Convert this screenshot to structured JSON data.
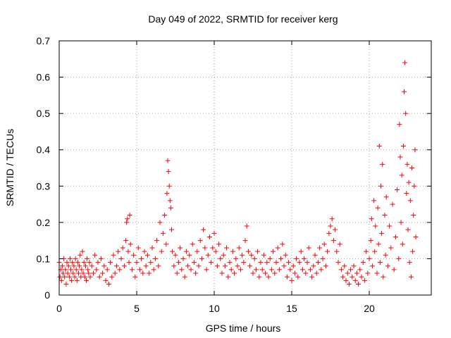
{
  "chart_data": {
    "type": "scatter",
    "title": "Day 049 of 2022, SRMTID for receiver kerg",
    "xlabel": "GPS time / hours",
    "ylabel": "SRMTID / TECUs",
    "xlim": [
      0,
      24
    ],
    "ylim": [
      0,
      0.7
    ],
    "grid": true,
    "marker": "+",
    "color": "#ff0000",
    "x_ticks": [
      0,
      5,
      10,
      15,
      20
    ],
    "x_tick_labels": [
      "0",
      "5",
      "10",
      "15",
      "20"
    ],
    "y_ticks": [
      0,
      0.1,
      0.2,
      0.3,
      0.4,
      0.5,
      0.6,
      0.7
    ],
    "y_tick_labels": [
      "0",
      "0.1",
      "0.2",
      "0.3",
      "0.4",
      "0.5",
      "0.6",
      "0.7"
    ],
    "series": [
      {
        "name": "SRMTID",
        "points": [
          [
            0.0,
            0.09
          ],
          [
            0.05,
            0.05
          ],
          [
            0.1,
            0.07
          ],
          [
            0.15,
            0.04
          ],
          [
            0.2,
            0.08
          ],
          [
            0.25,
            0.06
          ],
          [
            0.3,
            0.1
          ],
          [
            0.35,
            0.05
          ],
          [
            0.4,
            0.07
          ],
          [
            0.45,
            0.03
          ],
          [
            0.5,
            0.09
          ],
          [
            0.55,
            0.06
          ],
          [
            0.6,
            0.08
          ],
          [
            0.65,
            0.05
          ],
          [
            0.7,
            0.1
          ],
          [
            0.75,
            0.07
          ],
          [
            0.8,
            0.04
          ],
          [
            0.85,
            0.09
          ],
          [
            0.9,
            0.06
          ],
          [
            0.95,
            0.08
          ],
          [
            1.0,
            0.05
          ],
          [
            1.05,
            0.1
          ],
          [
            1.1,
            0.07
          ],
          [
            1.15,
            0.04
          ],
          [
            1.2,
            0.09
          ],
          [
            1.25,
            0.06
          ],
          [
            1.3,
            0.08
          ],
          [
            1.35,
            0.11
          ],
          [
            1.4,
            0.05
          ],
          [
            1.45,
            0.07
          ],
          [
            1.5,
            0.12
          ],
          [
            1.55,
            0.06
          ],
          [
            1.6,
            0.09
          ],
          [
            1.65,
            0.05
          ],
          [
            1.7,
            0.08
          ],
          [
            1.75,
            0.04
          ],
          [
            1.8,
            0.1
          ],
          [
            1.85,
            0.07
          ],
          [
            1.9,
            0.06
          ],
          [
            1.95,
            0.09
          ],
          [
            2.0,
            0.05
          ],
          [
            2.1,
            0.08
          ],
          [
            2.2,
            0.06
          ],
          [
            2.3,
            0.11
          ],
          [
            2.4,
            0.07
          ],
          [
            2.5,
            0.09
          ],
          [
            2.6,
            0.05
          ],
          [
            2.7,
            0.1
          ],
          [
            2.8,
            0.06
          ],
          [
            2.9,
            0.08
          ],
          [
            3.0,
            0.04
          ],
          [
            3.1,
            0.07
          ],
          [
            3.2,
            0.03
          ],
          [
            3.3,
            0.09
          ],
          [
            3.4,
            0.05
          ],
          [
            3.5,
            0.11
          ],
          [
            3.6,
            0.06
          ],
          [
            3.7,
            0.08
          ],
          [
            3.8,
            0.12
          ],
          [
            3.9,
            0.07
          ],
          [
            4.0,
            0.1
          ],
          [
            4.1,
            0.13
          ],
          [
            4.2,
            0.08
          ],
          [
            4.3,
            0.15
          ],
          [
            4.35,
            0.2
          ],
          [
            4.4,
            0.21
          ],
          [
            4.45,
            0.12
          ],
          [
            4.5,
            0.09
          ],
          [
            4.55,
            0.22
          ],
          [
            4.6,
            0.14
          ],
          [
            4.7,
            0.07
          ],
          [
            4.8,
            0.11
          ],
          [
            4.9,
            0.05
          ],
          [
            5.0,
            0.09
          ],
          [
            5.1,
            0.13
          ],
          [
            5.2,
            0.07
          ],
          [
            5.3,
            0.1
          ],
          [
            5.4,
            0.06
          ],
          [
            5.5,
            0.12
          ],
          [
            5.6,
            0.08
          ],
          [
            5.7,
            0.11
          ],
          [
            5.8,
            0.06
          ],
          [
            5.9,
            0.09
          ],
          [
            6.0,
            0.13
          ],
          [
            6.1,
            0.07
          ],
          [
            6.2,
            0.1
          ],
          [
            6.3,
            0.15
          ],
          [
            6.4,
            0.08
          ],
          [
            6.5,
            0.2
          ],
          [
            6.6,
            0.12
          ],
          [
            6.7,
            0.17
          ],
          [
            6.8,
            0.22
          ],
          [
            6.9,
            0.14
          ],
          [
            6.95,
            0.28
          ],
          [
            7.0,
            0.37
          ],
          [
            7.05,
            0.34
          ],
          [
            7.1,
            0.3
          ],
          [
            7.15,
            0.26
          ],
          [
            7.2,
            0.24
          ],
          [
            7.25,
            0.18
          ],
          [
            7.3,
            0.12
          ],
          [
            7.4,
            0.08
          ],
          [
            7.5,
            0.11
          ],
          [
            7.6,
            0.06
          ],
          [
            7.7,
            0.09
          ],
          [
            7.8,
            0.13
          ],
          [
            7.9,
            0.07
          ],
          [
            8.0,
            0.1
          ],
          [
            8.1,
            0.05
          ],
          [
            8.2,
            0.12
          ],
          [
            8.3,
            0.08
          ],
          [
            8.4,
            0.11
          ],
          [
            8.5,
            0.07
          ],
          [
            8.6,
            0.14
          ],
          [
            8.7,
            0.09
          ],
          [
            8.8,
            0.06
          ],
          [
            8.9,
            0.12
          ],
          [
            9.0,
            0.08
          ],
          [
            9.1,
            0.15
          ],
          [
            9.2,
            0.1
          ],
          [
            9.3,
            0.18
          ],
          [
            9.4,
            0.13
          ],
          [
            9.5,
            0.07
          ],
          [
            9.6,
            0.11
          ],
          [
            9.7,
            0.16
          ],
          [
            9.8,
            0.09
          ],
          [
            9.9,
            0.13
          ],
          [
            10.0,
            0.17
          ],
          [
            10.1,
            0.12
          ],
          [
            10.2,
            0.08
          ],
          [
            10.3,
            0.14
          ],
          [
            10.4,
            0.1
          ],
          [
            10.5,
            0.06
          ],
          [
            10.6,
            0.11
          ],
          [
            10.7,
            0.08
          ],
          [
            10.8,
            0.13
          ],
          [
            10.9,
            0.05
          ],
          [
            11.0,
            0.09
          ],
          [
            11.1,
            0.07
          ],
          [
            11.2,
            0.12
          ],
          [
            11.3,
            0.06
          ],
          [
            11.4,
            0.1
          ],
          [
            11.5,
            0.08
          ],
          [
            11.6,
            0.13
          ],
          [
            11.7,
            0.07
          ],
          [
            11.8,
            0.11
          ],
          [
            11.9,
            0.09
          ],
          [
            12.0,
            0.15
          ],
          [
            12.1,
            0.19
          ],
          [
            12.2,
            0.12
          ],
          [
            12.3,
            0.08
          ],
          [
            12.4,
            0.11
          ],
          [
            12.5,
            0.06
          ],
          [
            12.6,
            0.1
          ],
          [
            12.7,
            0.07
          ],
          [
            12.8,
            0.12
          ],
          [
            12.9,
            0.05
          ],
          [
            13.0,
            0.09
          ],
          [
            13.1,
            0.07
          ],
          [
            13.2,
            0.11
          ],
          [
            13.3,
            0.06
          ],
          [
            13.4,
            0.09
          ],
          [
            13.5,
            0.05
          ],
          [
            13.6,
            0.1
          ],
          [
            13.7,
            0.07
          ],
          [
            13.8,
            0.12
          ],
          [
            13.9,
            0.06
          ],
          [
            14.0,
            0.09
          ],
          [
            14.1,
            0.13
          ],
          [
            14.2,
            0.07
          ],
          [
            14.3,
            0.1
          ],
          [
            14.4,
            0.14
          ],
          [
            14.5,
            0.08
          ],
          [
            14.6,
            0.11
          ],
          [
            14.7,
            0.05
          ],
          [
            14.8,
            0.09
          ],
          [
            14.9,
            0.07
          ],
          [
            15.0,
            0.04
          ],
          [
            15.1,
            0.08
          ],
          [
            15.2,
            0.06
          ],
          [
            15.3,
            0.1
          ],
          [
            15.4,
            0.05
          ],
          [
            15.5,
            0.09
          ],
          [
            15.6,
            0.12
          ],
          [
            15.7,
            0.07
          ],
          [
            15.8,
            0.1
          ],
          [
            15.9,
            0.06
          ],
          [
            16.0,
            0.09
          ],
          [
            16.1,
            0.13
          ],
          [
            16.2,
            0.07
          ],
          [
            16.3,
            0.05
          ],
          [
            16.4,
            0.08
          ],
          [
            16.5,
            0.11
          ],
          [
            16.6,
            0.06
          ],
          [
            16.7,
            0.09
          ],
          [
            16.8,
            0.13
          ],
          [
            16.9,
            0.07
          ],
          [
            17.0,
            0.1
          ],
          [
            17.1,
            0.14
          ],
          [
            17.2,
            0.08
          ],
          [
            17.3,
            0.12
          ],
          [
            17.4,
            0.17
          ],
          [
            17.5,
            0.19
          ],
          [
            17.6,
            0.21
          ],
          [
            17.7,
            0.15
          ],
          [
            17.8,
            0.18
          ],
          [
            17.9,
            0.12
          ],
          [
            18.0,
            0.09
          ],
          [
            18.1,
            0.14
          ],
          [
            18.2,
            0.07
          ],
          [
            18.3,
            0.05
          ],
          [
            18.4,
            0.08
          ],
          [
            18.5,
            0.04
          ],
          [
            18.6,
            0.06
          ],
          [
            18.7,
            0.03
          ],
          [
            18.8,
            0.07
          ],
          [
            18.9,
            0.05
          ],
          [
            19.0,
            0.08
          ],
          [
            19.1,
            0.04
          ],
          [
            19.2,
            0.06
          ],
          [
            19.3,
            0.03
          ],
          [
            19.4,
            0.07
          ],
          [
            19.5,
            0.05
          ],
          [
            19.6,
            0.09
          ],
          [
            19.7,
            0.04
          ],
          [
            19.8,
            0.12
          ],
          [
            19.9,
            0.06
          ],
          [
            20.0,
            0.1
          ],
          [
            20.1,
            0.15
          ],
          [
            20.15,
            0.21
          ],
          [
            20.2,
            0.08
          ],
          [
            20.3,
            0.26
          ],
          [
            20.35,
            0.12
          ],
          [
            20.4,
            0.19
          ],
          [
            20.5,
            0.06
          ],
          [
            20.55,
            0.24
          ],
          [
            20.6,
            0.14
          ],
          [
            20.65,
            0.41
          ],
          [
            20.7,
            0.09
          ],
          [
            20.75,
            0.3
          ],
          [
            20.8,
            0.17
          ],
          [
            20.85,
            0.36
          ],
          [
            20.9,
            0.05
          ],
          [
            21.0,
            0.22
          ],
          [
            21.05,
            0.11
          ],
          [
            21.1,
            0.27
          ],
          [
            21.2,
            0.08
          ],
          [
            21.3,
            0.19
          ],
          [
            21.4,
            0.13
          ],
          [
            21.5,
            0.25
          ],
          [
            21.6,
            0.07
          ],
          [
            21.7,
            0.16
          ],
          [
            21.8,
            0.29
          ],
          [
            21.9,
            0.1
          ],
          [
            21.95,
            0.47
          ],
          [
            22.0,
            0.38
          ],
          [
            22.05,
            0.2
          ],
          [
            22.1,
            0.33
          ],
          [
            22.15,
            0.14
          ],
          [
            22.2,
            0.41
          ],
          [
            22.25,
            0.56
          ],
          [
            22.3,
            0.64
          ],
          [
            22.35,
            0.5
          ],
          [
            22.4,
            0.28
          ],
          [
            22.45,
            0.36
          ],
          [
            22.5,
            0.18
          ],
          [
            22.55,
            0.31
          ],
          [
            22.6,
            0.09
          ],
          [
            22.65,
            0.26
          ],
          [
            22.7,
            0.05
          ],
          [
            22.75,
            0.35
          ],
          [
            22.8,
            0.12
          ],
          [
            22.85,
            0.22
          ],
          [
            22.9,
            0.3
          ],
          [
            22.95,
            0.4
          ],
          [
            23.0,
            0.16
          ]
        ]
      }
    ]
  }
}
